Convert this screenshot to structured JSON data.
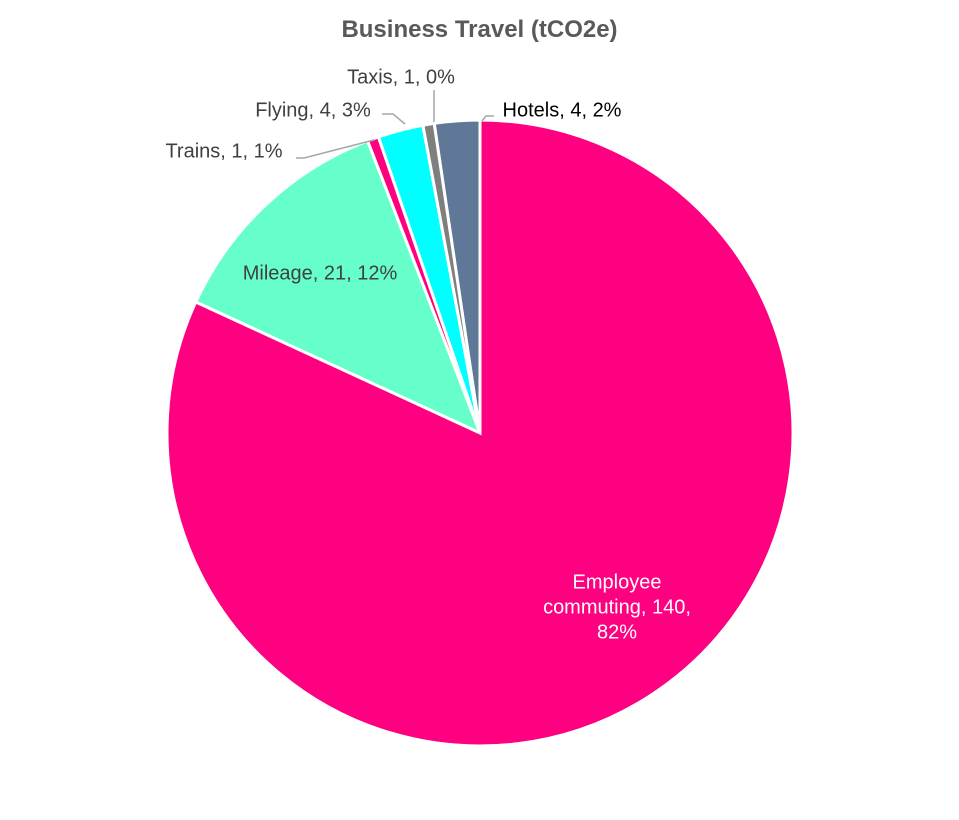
{
  "chart_data": {
    "type": "pie",
    "title": "Business Travel (tCO2e)",
    "values": [
      140,
      21,
      1,
      4,
      1,
      4
    ],
    "value_labels": [
      "Employee commuting, 140, 82%",
      "Mileage, 21, 12%",
      "Trains, 1, 1%",
      "Flying, 4, 3%",
      "Taxis, 1, 0%",
      "Hotels, 4, 2%"
    ],
    "colors": [
      "#ff0080",
      "#66ffcc",
      "#ff0080",
      "#00ffff",
      "#7f7f7f",
      "#5f7897"
    ]
  }
}
